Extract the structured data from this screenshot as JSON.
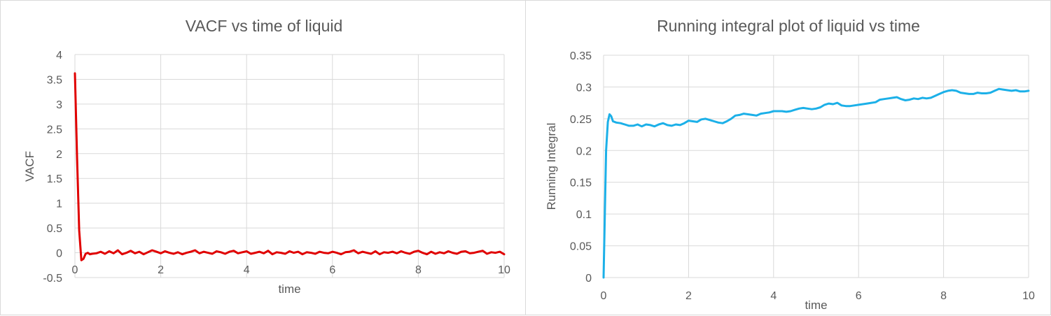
{
  "chart_data": [
    {
      "type": "line",
      "title": "VACF vs time of liquid",
      "xlabel": "time",
      "ylabel": "VACF",
      "xlim": [
        0,
        10
      ],
      "ylim": [
        -0.5,
        4
      ],
      "xticks": [
        "0",
        "2",
        "4",
        "6",
        "8",
        "10"
      ],
      "yticks": [
        "-0.5",
        "0",
        "0.5",
        "1",
        "1.5",
        "2",
        "2.5",
        "3",
        "3.5",
        "4"
      ],
      "grid": true,
      "legend": "none",
      "series": [
        {
          "color": "#e00000",
          "x": [
            0,
            0.05,
            0.1,
            0.15,
            0.2,
            0.25,
            0.3,
            0.35,
            0.4,
            0.5,
            0.6,
            0.7,
            0.8,
            0.9,
            1.0,
            1.1,
            1.2,
            1.3,
            1.4,
            1.5,
            1.6,
            1.7,
            1.8,
            1.9,
            2.0,
            2.1,
            2.2,
            2.3,
            2.4,
            2.5,
            2.6,
            2.7,
            2.8,
            2.9,
            3.0,
            3.1,
            3.2,
            3.3,
            3.4,
            3.5,
            3.6,
            3.7,
            3.8,
            3.9,
            4.0,
            4.1,
            4.2,
            4.3,
            4.4,
            4.5,
            4.6,
            4.7,
            4.8,
            4.9,
            5.0,
            5.1,
            5.2,
            5.3,
            5.4,
            5.5,
            5.6,
            5.7,
            5.8,
            5.9,
            6.0,
            6.1,
            6.2,
            6.3,
            6.4,
            6.5,
            6.6,
            6.7,
            6.8,
            6.9,
            7.0,
            7.1,
            7.2,
            7.3,
            7.4,
            7.5,
            7.6,
            7.7,
            7.8,
            7.9,
            8.0,
            8.1,
            8.2,
            8.3,
            8.4,
            8.5,
            8.6,
            8.7,
            8.8,
            8.9,
            9.0,
            9.1,
            9.2,
            9.3,
            9.4,
            9.5,
            9.6,
            9.7,
            9.8,
            9.9,
            10.0
          ],
          "y": [
            3.62,
            1.9,
            0.45,
            -0.15,
            -0.12,
            -0.02,
            0.0,
            -0.03,
            -0.02,
            -0.01,
            0.02,
            -0.02,
            0.03,
            -0.01,
            0.05,
            -0.03,
            0.0,
            0.04,
            -0.01,
            0.02,
            -0.03,
            0.01,
            0.05,
            0.02,
            -0.01,
            0.03,
            0.0,
            -0.02,
            0.01,
            -0.03,
            0.0,
            0.02,
            0.05,
            -0.01,
            0.02,
            0.0,
            -0.02,
            0.03,
            0.01,
            -0.02,
            0.02,
            0.04,
            -0.01,
            0.01,
            0.03,
            -0.02,
            0.0,
            0.02,
            -0.01,
            0.04,
            -0.03,
            0.01,
            0.0,
            -0.02,
            0.03,
            0.0,
            0.02,
            -0.03,
            0.01,
            0.0,
            -0.02,
            0.02,
            0.0,
            -0.01,
            0.02,
            0.0,
            -0.03,
            0.01,
            0.02,
            0.05,
            -0.01,
            0.02,
            0.0,
            -0.02,
            0.03,
            -0.03,
            0.01,
            0.0,
            0.02,
            -0.01,
            0.03,
            0.0,
            -0.02,
            0.02,
            0.04,
            0.0,
            -0.03,
            0.02,
            -0.02,
            0.01,
            -0.01,
            0.03,
            0.0,
            -0.02,
            0.02,
            0.03,
            -0.01,
            0.0,
            0.02,
            0.04,
            -0.02,
            0.01,
            0.0,
            0.02,
            -0.03
          ]
        }
      ]
    },
    {
      "type": "line",
      "title": "Running integral plot of liquid vs time",
      "xlabel": "time",
      "ylabel": "Running Integral",
      "xlim": [
        0,
        10
      ],
      "ylim": [
        0,
        0.35
      ],
      "xticks": [
        "0",
        "2",
        "4",
        "6",
        "8",
        "10"
      ],
      "yticks": [
        "0",
        "0.05",
        "0.1",
        "0.15",
        "0.2",
        "0.25",
        "0.3",
        "0.35"
      ],
      "grid": true,
      "legend": "none",
      "series": [
        {
          "color": "#1cb0e8",
          "x": [
            0,
            0.03,
            0.06,
            0.1,
            0.14,
            0.18,
            0.22,
            0.3,
            0.4,
            0.5,
            0.6,
            0.7,
            0.8,
            0.9,
            1.0,
            1.1,
            1.2,
            1.3,
            1.4,
            1.5,
            1.6,
            1.7,
            1.8,
            1.9,
            2.0,
            2.1,
            2.2,
            2.3,
            2.4,
            2.5,
            2.6,
            2.7,
            2.8,
            2.9,
            3.0,
            3.1,
            3.2,
            3.3,
            3.4,
            3.5,
            3.6,
            3.7,
            3.8,
            3.9,
            4.0,
            4.1,
            4.2,
            4.3,
            4.4,
            4.5,
            4.6,
            4.7,
            4.8,
            4.9,
            5.0,
            5.1,
            5.2,
            5.3,
            5.4,
            5.5,
            5.6,
            5.7,
            5.8,
            5.9,
            6.0,
            6.1,
            6.2,
            6.3,
            6.4,
            6.5,
            6.6,
            6.7,
            6.8,
            6.9,
            7.0,
            7.1,
            7.2,
            7.3,
            7.4,
            7.5,
            7.6,
            7.7,
            7.8,
            7.9,
            8.0,
            8.1,
            8.2,
            8.3,
            8.4,
            8.5,
            8.6,
            8.7,
            8.8,
            8.9,
            9.0,
            9.1,
            9.2,
            9.3,
            9.4,
            9.5,
            9.6,
            9.7,
            9.8,
            9.9,
            10.0
          ],
          "y": [
            0,
            0.1,
            0.2,
            0.245,
            0.257,
            0.254,
            0.246,
            0.244,
            0.243,
            0.241,
            0.239,
            0.239,
            0.241,
            0.238,
            0.241,
            0.24,
            0.238,
            0.241,
            0.243,
            0.24,
            0.239,
            0.241,
            0.24,
            0.243,
            0.247,
            0.246,
            0.245,
            0.249,
            0.25,
            0.248,
            0.246,
            0.244,
            0.243,
            0.246,
            0.25,
            0.255,
            0.256,
            0.258,
            0.257,
            0.256,
            0.255,
            0.258,
            0.259,
            0.26,
            0.262,
            0.262,
            0.262,
            0.261,
            0.262,
            0.264,
            0.266,
            0.267,
            0.266,
            0.265,
            0.266,
            0.268,
            0.272,
            0.274,
            0.273,
            0.275,
            0.271,
            0.27,
            0.27,
            0.271,
            0.272,
            0.273,
            0.274,
            0.275,
            0.276,
            0.28,
            0.281,
            0.282,
            0.283,
            0.284,
            0.281,
            0.279,
            0.28,
            0.282,
            0.281,
            0.283,
            0.282,
            0.283,
            0.286,
            0.289,
            0.292,
            0.294,
            0.295,
            0.294,
            0.291,
            0.29,
            0.289,
            0.289,
            0.291,
            0.29,
            0.29,
            0.291,
            0.294,
            0.297,
            0.296,
            0.295,
            0.294,
            0.295,
            0.293,
            0.293,
            0.294
          ]
        }
      ]
    }
  ]
}
